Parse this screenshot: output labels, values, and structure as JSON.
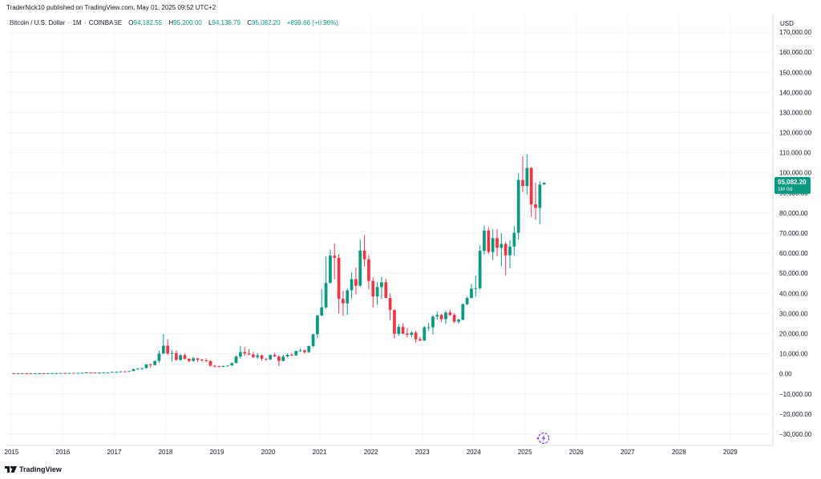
{
  "publisher": "TraderNick10 published on TradingView.com, May 01, 2025 09:52 UTC+2",
  "legend": {
    "symbol": "Bitcoin / U.S. Dollar",
    "interval": "1M",
    "exchange": "COINBASE",
    "open_label": "O",
    "open": "94,182.55",
    "high_label": "H",
    "high": "95,200.00",
    "low_label": "L",
    "low": "94,136.79",
    "close_label": "C",
    "close": "95,082.20",
    "change": "+899.66 (+0.96%)"
  },
  "axis": {
    "currency": "USD"
  },
  "price_tag": {
    "price": "95,082.20",
    "countdown": "1M 0d"
  },
  "logo": {
    "text": "TradingView"
  },
  "colors": {
    "up": "#089981",
    "down": "#f23645",
    "grid": "#f0f3fa",
    "axis_text": "#131722",
    "accent": "#7b3fe4"
  },
  "chart_data": {
    "type": "candlestick",
    "title": "",
    "xlabel": "",
    "ylabel": "",
    "y_ticks": [
      -30000,
      -20000,
      -10000,
      0,
      10000,
      20000,
      30000,
      40000,
      50000,
      60000,
      70000,
      80000,
      90000,
      100000,
      110000,
      120000,
      130000,
      140000,
      150000,
      160000,
      170000
    ],
    "y_tick_labels": [
      "−30,000.00",
      "−20,000.00",
      "−10,000.00",
      "0.00",
      "10,000.00",
      "20,000.00",
      "30,000.00",
      "40,000.00",
      "50,000.00",
      "60,000.00",
      "70,000.00",
      "80,000.00",
      "90,000.00",
      "100,000.00",
      "110,000.00",
      "120,000.00",
      "130,000.00",
      "140,000.00",
      "150,000.00",
      "160,000.00",
      "170,000.00"
    ],
    "ylim": [
      -34000,
      178000
    ],
    "x_ticks": [
      "2015",
      "2016",
      "2017",
      "2018",
      "2019",
      "2020",
      "2021",
      "2022",
      "2023",
      "2024",
      "2025",
      "2026",
      "2027",
      "2028",
      "2029"
    ],
    "xlim": [
      2014.9,
      2029.8
    ],
    "last_price": 95082.2,
    "candles": [
      {
        "t": "2015-01",
        "o": 320,
        "h": 320,
        "l": 170,
        "c": 220
      },
      {
        "t": "2015-02",
        "o": 220,
        "h": 265,
        "l": 210,
        "c": 255
      },
      {
        "t": "2015-03",
        "o": 255,
        "h": 300,
        "l": 240,
        "c": 245
      },
      {
        "t": "2015-04",
        "o": 245,
        "h": 260,
        "l": 215,
        "c": 235
      },
      {
        "t": "2015-05",
        "o": 235,
        "h": 250,
        "l": 225,
        "c": 230
      },
      {
        "t": "2015-06",
        "o": 230,
        "h": 268,
        "l": 220,
        "c": 265
      },
      {
        "t": "2015-07",
        "o": 265,
        "h": 315,
        "l": 255,
        "c": 285
      },
      {
        "t": "2015-08",
        "o": 285,
        "h": 285,
        "l": 200,
        "c": 230
      },
      {
        "t": "2015-09",
        "o": 230,
        "h": 245,
        "l": 225,
        "c": 237
      },
      {
        "t": "2015-10",
        "o": 237,
        "h": 330,
        "l": 235,
        "c": 314
      },
      {
        "t": "2015-11",
        "o": 314,
        "h": 500,
        "l": 300,
        "c": 378
      },
      {
        "t": "2015-12",
        "o": 378,
        "h": 465,
        "l": 350,
        "c": 430
      },
      {
        "t": "2016-01",
        "o": 430,
        "h": 460,
        "l": 350,
        "c": 368
      },
      {
        "t": "2016-02",
        "o": 368,
        "h": 440,
        "l": 365,
        "c": 437
      },
      {
        "t": "2016-03",
        "o": 437,
        "h": 440,
        "l": 400,
        "c": 416
      },
      {
        "t": "2016-04",
        "o": 416,
        "h": 465,
        "l": 415,
        "c": 448
      },
      {
        "t": "2016-05",
        "o": 448,
        "h": 545,
        "l": 440,
        "c": 531
      },
      {
        "t": "2016-06",
        "o": 531,
        "h": 780,
        "l": 530,
        "c": 673
      },
      {
        "t": "2016-07",
        "o": 673,
        "h": 700,
        "l": 610,
        "c": 624
      },
      {
        "t": "2016-08",
        "o": 624,
        "h": 625,
        "l": 480,
        "c": 573
      },
      {
        "t": "2016-09",
        "o": 573,
        "h": 630,
        "l": 570,
        "c": 609
      },
      {
        "t": "2016-10",
        "o": 609,
        "h": 720,
        "l": 605,
        "c": 699
      },
      {
        "t": "2016-11",
        "o": 699,
        "h": 755,
        "l": 690,
        "c": 742
      },
      {
        "t": "2016-12",
        "o": 742,
        "h": 975,
        "l": 740,
        "c": 963
      },
      {
        "t": "2017-01",
        "o": 963,
        "h": 1150,
        "l": 750,
        "c": 970
      },
      {
        "t": "2017-02",
        "o": 970,
        "h": 1210,
        "l": 940,
        "c": 1190
      },
      {
        "t": "2017-03",
        "o": 1190,
        "h": 1350,
        "l": 890,
        "c": 1080
      },
      {
        "t": "2017-04",
        "o": 1080,
        "h": 1350,
        "l": 1070,
        "c": 1348
      },
      {
        "t": "2017-05",
        "o": 1348,
        "h": 2760,
        "l": 1340,
        "c": 2300
      },
      {
        "t": "2017-06",
        "o": 2300,
        "h": 3000,
        "l": 2100,
        "c": 2500
      },
      {
        "t": "2017-07",
        "o": 2500,
        "h": 2900,
        "l": 1830,
        "c": 2875
      },
      {
        "t": "2017-08",
        "o": 2875,
        "h": 4750,
        "l": 2700,
        "c": 4700
      },
      {
        "t": "2017-09",
        "o": 4700,
        "h": 5000,
        "l": 2970,
        "c": 4340
      },
      {
        "t": "2017-10",
        "o": 4340,
        "h": 6470,
        "l": 4110,
        "c": 6450
      },
      {
        "t": "2017-11",
        "o": 6450,
        "h": 11500,
        "l": 5500,
        "c": 10000
      },
      {
        "t": "2017-12",
        "o": 10000,
        "h": 19800,
        "l": 10000,
        "c": 14000
      },
      {
        "t": "2018-01",
        "o": 14000,
        "h": 17200,
        "l": 9400,
        "c": 10100
      },
      {
        "t": "2018-02",
        "o": 10100,
        "h": 11800,
        "l": 6000,
        "c": 10300
      },
      {
        "t": "2018-03",
        "o": 10300,
        "h": 11700,
        "l": 6600,
        "c": 6900
      },
      {
        "t": "2018-04",
        "o": 6900,
        "h": 9800,
        "l": 6430,
        "c": 9240
      },
      {
        "t": "2018-05",
        "o": 9240,
        "h": 10000,
        "l": 7060,
        "c": 7500
      },
      {
        "t": "2018-06",
        "o": 7500,
        "h": 7770,
        "l": 5750,
        "c": 6390
      },
      {
        "t": "2018-07",
        "o": 6390,
        "h": 8500,
        "l": 6100,
        "c": 7730
      },
      {
        "t": "2018-08",
        "o": 7730,
        "h": 7760,
        "l": 5880,
        "c": 7030
      },
      {
        "t": "2018-09",
        "o": 7030,
        "h": 7420,
        "l": 6100,
        "c": 6630
      },
      {
        "t": "2018-10",
        "o": 6630,
        "h": 7700,
        "l": 6200,
        "c": 6370
      },
      {
        "t": "2018-11",
        "o": 6370,
        "h": 6620,
        "l": 3650,
        "c": 4040
      },
      {
        "t": "2018-12",
        "o": 4040,
        "h": 4300,
        "l": 3150,
        "c": 3740
      },
      {
        "t": "2019-01",
        "o": 3740,
        "h": 4100,
        "l": 3350,
        "c": 3440
      },
      {
        "t": "2019-02",
        "o": 3440,
        "h": 4200,
        "l": 3370,
        "c": 3850
      },
      {
        "t": "2019-03",
        "o": 3850,
        "h": 4130,
        "l": 3700,
        "c": 4100
      },
      {
        "t": "2019-04",
        "o": 4100,
        "h": 5650,
        "l": 4050,
        "c": 5330
      },
      {
        "t": "2019-05",
        "o": 5330,
        "h": 9100,
        "l": 5350,
        "c": 8570
      },
      {
        "t": "2019-06",
        "o": 8570,
        "h": 13900,
        "l": 7500,
        "c": 10800
      },
      {
        "t": "2019-07",
        "o": 10800,
        "h": 13200,
        "l": 9000,
        "c": 10100
      },
      {
        "t": "2019-08",
        "o": 10100,
        "h": 12300,
        "l": 9300,
        "c": 9600
      },
      {
        "t": "2019-09",
        "o": 9600,
        "h": 10950,
        "l": 7700,
        "c": 8300
      },
      {
        "t": "2019-10",
        "o": 8300,
        "h": 10350,
        "l": 7300,
        "c": 9150
      },
      {
        "t": "2019-11",
        "o": 9150,
        "h": 9500,
        "l": 6500,
        "c": 7540
      },
      {
        "t": "2019-12",
        "o": 7540,
        "h": 7750,
        "l": 6430,
        "c": 7200
      },
      {
        "t": "2020-01",
        "o": 7200,
        "h": 9600,
        "l": 6850,
        "c": 9350
      },
      {
        "t": "2020-02",
        "o": 9350,
        "h": 10500,
        "l": 8400,
        "c": 8600
      },
      {
        "t": "2020-03",
        "o": 8600,
        "h": 9200,
        "l": 3850,
        "c": 6420
      },
      {
        "t": "2020-04",
        "o": 6420,
        "h": 9480,
        "l": 6150,
        "c": 8630
      },
      {
        "t": "2020-05",
        "o": 8630,
        "h": 10070,
        "l": 8100,
        "c": 9450
      },
      {
        "t": "2020-06",
        "o": 9450,
        "h": 10400,
        "l": 8900,
        "c": 9140
      },
      {
        "t": "2020-07",
        "o": 9140,
        "h": 11450,
        "l": 8950,
        "c": 11350
      },
      {
        "t": "2020-08",
        "o": 11350,
        "h": 12500,
        "l": 10950,
        "c": 11650
      },
      {
        "t": "2020-09",
        "o": 11650,
        "h": 12050,
        "l": 9900,
        "c": 10780
      },
      {
        "t": "2020-10",
        "o": 10780,
        "h": 14100,
        "l": 10400,
        "c": 13800
      },
      {
        "t": "2020-11",
        "o": 13800,
        "h": 19900,
        "l": 13200,
        "c": 19700
      },
      {
        "t": "2020-12",
        "o": 19700,
        "h": 29300,
        "l": 17600,
        "c": 28990
      },
      {
        "t": "2021-01",
        "o": 28990,
        "h": 41950,
        "l": 28700,
        "c": 33100
      },
      {
        "t": "2021-02",
        "o": 33100,
        "h": 58300,
        "l": 32300,
        "c": 45200
      },
      {
        "t": "2021-03",
        "o": 45200,
        "h": 61800,
        "l": 45000,
        "c": 58800
      },
      {
        "t": "2021-04",
        "o": 58800,
        "h": 64900,
        "l": 47000,
        "c": 57700
      },
      {
        "t": "2021-05",
        "o": 57700,
        "h": 59600,
        "l": 30000,
        "c": 37300
      },
      {
        "t": "2021-06",
        "o": 37300,
        "h": 41300,
        "l": 28800,
        "c": 35000
      },
      {
        "t": "2021-07",
        "o": 35000,
        "h": 42300,
        "l": 29300,
        "c": 41500
      },
      {
        "t": "2021-08",
        "o": 41500,
        "h": 50500,
        "l": 37400,
        "c": 47100
      },
      {
        "t": "2021-09",
        "o": 47100,
        "h": 52900,
        "l": 39600,
        "c": 43800
      },
      {
        "t": "2021-10",
        "o": 43800,
        "h": 67000,
        "l": 43300,
        "c": 61300
      },
      {
        "t": "2021-11",
        "o": 61300,
        "h": 69000,
        "l": 53300,
        "c": 57000
      },
      {
        "t": "2021-12",
        "o": 57000,
        "h": 59100,
        "l": 42000,
        "c": 46200
      },
      {
        "t": "2022-01",
        "o": 46200,
        "h": 47900,
        "l": 32900,
        "c": 38500
      },
      {
        "t": "2022-02",
        "o": 38500,
        "h": 45800,
        "l": 34300,
        "c": 43200
      },
      {
        "t": "2022-03",
        "o": 43200,
        "h": 48200,
        "l": 37200,
        "c": 45500
      },
      {
        "t": "2022-04",
        "o": 45500,
        "h": 47400,
        "l": 37600,
        "c": 37700
      },
      {
        "t": "2022-05",
        "o": 37700,
        "h": 40000,
        "l": 26700,
        "c": 31800
      },
      {
        "t": "2022-06",
        "o": 31800,
        "h": 31900,
        "l": 17600,
        "c": 19900
      },
      {
        "t": "2022-07",
        "o": 19900,
        "h": 24700,
        "l": 18800,
        "c": 23300
      },
      {
        "t": "2022-08",
        "o": 23300,
        "h": 25200,
        "l": 19600,
        "c": 20000
      },
      {
        "t": "2022-09",
        "o": 20000,
        "h": 22800,
        "l": 18100,
        "c": 19400
      },
      {
        "t": "2022-10",
        "o": 19400,
        "h": 21100,
        "l": 18200,
        "c": 20500
      },
      {
        "t": "2022-11",
        "o": 20500,
        "h": 21500,
        "l": 15500,
        "c": 17200
      },
      {
        "t": "2022-12",
        "o": 17200,
        "h": 18400,
        "l": 16300,
        "c": 16550
      },
      {
        "t": "2023-01",
        "o": 16550,
        "h": 23900,
        "l": 16500,
        "c": 23150
      },
      {
        "t": "2023-02",
        "o": 23150,
        "h": 25300,
        "l": 21400,
        "c": 23150
      },
      {
        "t": "2023-03",
        "o": 23150,
        "h": 29200,
        "l": 19600,
        "c": 28500
      },
      {
        "t": "2023-04",
        "o": 28500,
        "h": 31000,
        "l": 26900,
        "c": 29250
      },
      {
        "t": "2023-05",
        "o": 29250,
        "h": 29850,
        "l": 25800,
        "c": 27200
      },
      {
        "t": "2023-06",
        "o": 27200,
        "h": 31400,
        "l": 24800,
        "c": 30500
      },
      {
        "t": "2023-07",
        "o": 30500,
        "h": 31800,
        "l": 28800,
        "c": 29250
      },
      {
        "t": "2023-08",
        "o": 29250,
        "h": 30250,
        "l": 25200,
        "c": 25950
      },
      {
        "t": "2023-09",
        "o": 25950,
        "h": 27500,
        "l": 24900,
        "c": 26950
      },
      {
        "t": "2023-10",
        "o": 26950,
        "h": 35000,
        "l": 26600,
        "c": 34650
      },
      {
        "t": "2023-11",
        "o": 34650,
        "h": 38400,
        "l": 34100,
        "c": 37700
      },
      {
        "t": "2023-12",
        "o": 37700,
        "h": 44700,
        "l": 37600,
        "c": 42300
      },
      {
        "t": "2024-01",
        "o": 42300,
        "h": 48900,
        "l": 38500,
        "c": 42600
      },
      {
        "t": "2024-02",
        "o": 42600,
        "h": 64000,
        "l": 41900,
        "c": 61200
      },
      {
        "t": "2024-03",
        "o": 61200,
        "h": 73800,
        "l": 59200,
        "c": 71300
      },
      {
        "t": "2024-04",
        "o": 71300,
        "h": 72800,
        "l": 59600,
        "c": 60600
      },
      {
        "t": "2024-05",
        "o": 60600,
        "h": 71900,
        "l": 56500,
        "c": 67500
      },
      {
        "t": "2024-06",
        "o": 67500,
        "h": 72000,
        "l": 58400,
        "c": 62700
      },
      {
        "t": "2024-07",
        "o": 62700,
        "h": 70000,
        "l": 53500,
        "c": 64600
      },
      {
        "t": "2024-08",
        "o": 64600,
        "h": 65600,
        "l": 49000,
        "c": 58900
      },
      {
        "t": "2024-09",
        "o": 58900,
        "h": 66500,
        "l": 52500,
        "c": 63300
      },
      {
        "t": "2024-10",
        "o": 63300,
        "h": 73600,
        "l": 58900,
        "c": 70200
      },
      {
        "t": "2024-11",
        "o": 70200,
        "h": 99800,
        "l": 66800,
        "c": 96400
      },
      {
        "t": "2024-12",
        "o": 96400,
        "h": 108300,
        "l": 90500,
        "c": 93400
      },
      {
        "t": "2025-01",
        "o": 93400,
        "h": 109300,
        "l": 89200,
        "c": 102400
      },
      {
        "t": "2025-02",
        "o": 102400,
        "h": 102800,
        "l": 78200,
        "c": 84300
      },
      {
        "t": "2025-03",
        "o": 84300,
        "h": 95000,
        "l": 76600,
        "c": 82500
      },
      {
        "t": "2025-04",
        "o": 82500,
        "h": 95800,
        "l": 74400,
        "c": 94200
      },
      {
        "t": "2025-05",
        "o": 94182.55,
        "h": 95200,
        "l": 94136.79,
        "c": 95082.2
      }
    ]
  }
}
